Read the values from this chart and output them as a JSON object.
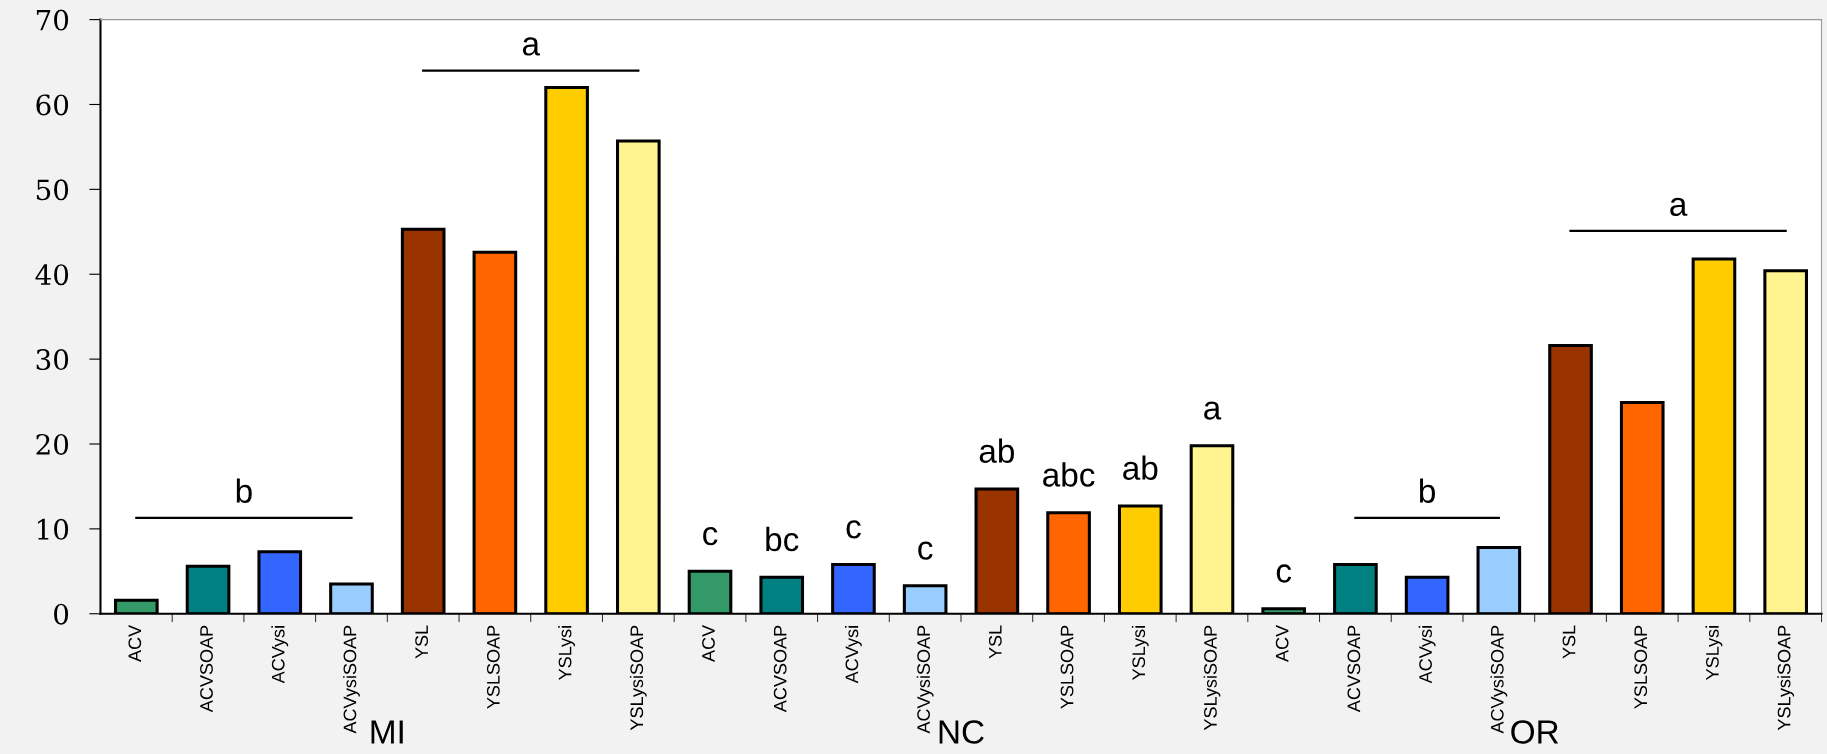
{
  "chart_data": {
    "type": "bar",
    "categories": [
      "ACV",
      "ACVSOAP",
      "ACVysi",
      "ACVysiSOAP",
      "YSL",
      "YSLSOAP",
      "YSLysi",
      "YSLysiSOAP",
      "ACV",
      "ACVSOAP",
      "ACVysi",
      "ACVysiSOAP",
      "YSL",
      "YSLSOAP",
      "YSLysi",
      "YSLysiSOAP",
      "ACV",
      "ACVSOAP",
      "ACVysi",
      "ACVysiSOAP",
      "YSL",
      "YSLSOAP",
      "YSLysi",
      "YSLysiSOAP"
    ],
    "series": [
      {
        "values": [
          1.6,
          5.6,
          7.3,
          3.5,
          45.3,
          42.6,
          62.0,
          55.7,
          5.0,
          4.3,
          5.8,
          3.3,
          14.7,
          11.9,
          12.7,
          19.8,
          0.6,
          5.8,
          4.3,
          7.8,
          31.6,
          24.9,
          41.8,
          40.4
        ],
        "value_labels": [
          null,
          null,
          null,
          null,
          null,
          null,
          null,
          null,
          "c",
          "bc",
          "c",
          "c",
          "ab",
          "abc",
          "ab",
          "a",
          "c",
          null,
          null,
          null,
          null,
          null,
          null,
          null
        ],
        "colors": [
          "#339966",
          "#008080",
          "#3366ff",
          "#99ccff",
          "#993300",
          "#ff6600",
          "#ffcc00",
          "#fff48f",
          "#339966",
          "#008080",
          "#3366ff",
          "#99ccff",
          "#993300",
          "#ff6600",
          "#ffcc00",
          "#fff48f",
          "#339966",
          "#008080",
          "#3366ff",
          "#99ccff",
          "#993300",
          "#ff6600",
          "#ffcc00",
          "#fff48f"
        ]
      },
      {
        "type": "line",
        "name": "b",
        "color": "#000000",
        "values": [
          11.3,
          11.3,
          11.3,
          11.3,
          null,
          null,
          null,
          null,
          null,
          null,
          null,
          null,
          null,
          null,
          null,
          null,
          null,
          null,
          null,
          null,
          null,
          null,
          null,
          null
        ]
      },
      {
        "type": "line",
        "name": "a",
        "color": "#000000",
        "values": [
          null,
          null,
          null,
          null,
          64.0,
          64.0,
          64.0,
          64.0,
          null,
          null,
          null,
          null,
          null,
          null,
          null,
          null,
          null,
          null,
          null,
          null,
          null,
          null,
          null,
          null
        ]
      },
      {
        "type": "line",
        "name": "b",
        "color": "#000000",
        "values": [
          null,
          null,
          null,
          null,
          null,
          null,
          null,
          null,
          null,
          null,
          null,
          null,
          null,
          null,
          null,
          null,
          null,
          11.3,
          11.3,
          11.3,
          null,
          null,
          null,
          null
        ]
      },
      {
        "type": "line",
        "name": "a",
        "color": "#000000",
        "values": [
          null,
          null,
          null,
          null,
          null,
          null,
          null,
          null,
          null,
          null,
          null,
          null,
          null,
          null,
          null,
          null,
          null,
          null,
          null,
          null,
          45.1,
          45.1,
          45.1,
          45.1
        ]
      }
    ],
    "annotations": [
      "MI",
      "NC",
      "OR"
    ],
    "ylim": [
      0,
      70
    ],
    "yticks": [
      0,
      10,
      20,
      30,
      40,
      50,
      60,
      70
    ],
    "grid": false,
    "legend": false,
    "marker": "none",
    "line_style": "solid"
  }
}
